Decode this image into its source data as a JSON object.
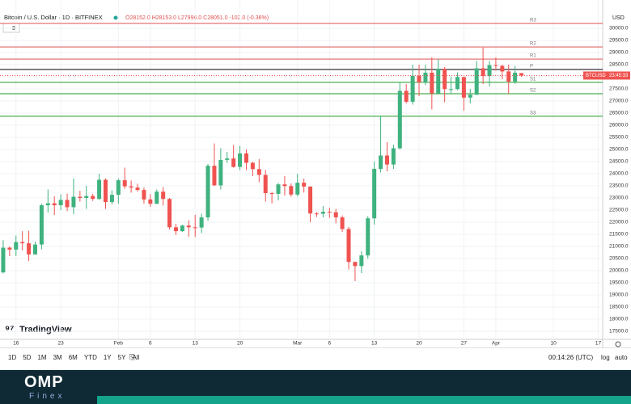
{
  "chart_data": {
    "type": "candlestick",
    "title": "Bitcoin / U.S. Dollar · 1D · BITFINEX",
    "legend": "O28152.0 H28153.0 L27996.0 C28051.0 -102.0 (-0.36%)",
    "indicator_count": "3",
    "y_axis_label": "USD",
    "x": [
      14,
      15,
      16,
      17,
      18,
      19,
      20,
      21,
      22,
      23,
      24,
      25,
      26,
      27,
      28,
      29,
      30,
      31,
      32,
      33,
      34,
      35,
      36,
      37,
      38,
      39,
      40,
      41,
      42,
      43,
      44,
      45,
      46,
      47,
      48,
      49,
      50,
      51,
      52,
      53,
      54,
      55,
      56,
      57,
      58,
      59,
      60,
      61,
      62,
      63,
      64,
      65,
      66,
      67,
      68,
      69,
      70,
      71,
      72,
      73,
      74,
      75,
      76,
      77,
      78,
      79,
      80,
      81,
      82,
      83,
      84,
      85,
      86,
      87,
      88,
      89,
      90,
      91,
      92,
      93,
      94,
      95
    ],
    "open": [
      19930,
      20950,
      20870,
      21180,
      21130,
      20670,
      21080,
      22700,
      22780,
      22700,
      22920,
      22620,
      23050,
      23000,
      23080,
      22960,
      23750,
      22830,
      23130,
      23730,
      23480,
      23430,
      23330,
      22940,
      22760,
      23260,
      22960,
      21790,
      21630,
      21860,
      21790,
      21780,
      22200,
      24330,
      23520,
      24570,
      24630,
      24280,
      24840,
      24450,
      24190,
      23950,
      23200,
      23170,
      23560,
      23490,
      23140,
      23630,
      23470,
      22360,
      22350,
      22430,
      22410,
      22200,
      21720,
      20360,
      20190,
      20630,
      22160,
      24200,
      24750,
      24380,
      25050,
      27420,
      26970,
      28040,
      27770,
      28170,
      27310,
      28330,
      27490,
      27490,
      27990,
      27140,
      27260,
      28350,
      28030,
      28480,
      28450,
      28220,
      27800,
      28152
    ],
    "high": [
      21260,
      21000,
      21450,
      21630,
      21650,
      21200,
      22760,
      23350,
      23070,
      23150,
      23180,
      23800,
      23300,
      23500,
      23170,
      24000,
      23800,
      23320,
      23800,
      24250,
      23720,
      23590,
      23430,
      23160,
      23350,
      23450,
      23000,
      21930,
      21900,
      22080,
      22300,
      22350,
      24400,
      25250,
      25050,
      24900,
      25180,
      25150,
      25000,
      24500,
      24600,
      24150,
      23250,
      23620,
      23900,
      23600,
      24000,
      23800,
      23480,
      22420,
      22670,
      22600,
      22550,
      22280,
      21800,
      20380,
      20800,
      22250,
      24500,
      26400,
      25300,
      25200,
      27750,
      27700,
      28500,
      28500,
      28500,
      28800,
      28730,
      28400,
      28000,
      28180,
      28000,
      27500,
      28650,
      29200,
      28650,
      28800,
      28500,
      28500,
      28450,
      28153
    ],
    "low": [
      19890,
      20600,
      20600,
      20840,
      20400,
      20660,
      20880,
      22400,
      22300,
      22500,
      22460,
      22330,
      22850,
      22550,
      22880,
      22920,
      22550,
      22730,
      22760,
      23380,
      23220,
      23260,
      22770,
      22630,
      22750,
      22690,
      21700,
      21470,
      21600,
      21400,
      21390,
      21550,
      22060,
      23500,
      23350,
      24450,
      24250,
      24150,
      24150,
      23900,
      23650,
      22850,
      22780,
      22900,
      23100,
      23050,
      23060,
      23220,
      22000,
      22220,
      22200,
      22180,
      21950,
      21600,
      20050,
      19570,
      19900,
      20500,
      21900,
      24050,
      24100,
      24200,
      25000,
      26900,
      26850,
      27200,
      27650,
      26650,
      27300,
      26950,
      27300,
      27450,
      26600,
      26900,
      27250,
      27700,
      27600,
      28250,
      27900,
      27300,
      27700,
      27996
    ],
    "close": [
      20950,
      20870,
      21180,
      21130,
      20670,
      21080,
      22700,
      22780,
      22700,
      22920,
      22620,
      23050,
      23000,
      23080,
      22960,
      23750,
      22830,
      23130,
      23730,
      23480,
      23430,
      23330,
      22940,
      22760,
      23260,
      22960,
      21790,
      21630,
      21860,
      21790,
      21780,
      22200,
      24330,
      23520,
      24570,
      24630,
      24280,
      24840,
      24450,
      24190,
      23950,
      23200,
      23170,
      23560,
      23490,
      23140,
      23630,
      23470,
      22360,
      22350,
      22430,
      22410,
      22200,
      21720,
      20360,
      20190,
      20630,
      22160,
      24200,
      24750,
      24380,
      25050,
      27420,
      26970,
      28040,
      27770,
      28170,
      27310,
      28330,
      27490,
      27490,
      27990,
      27140,
      27260,
      28350,
      28030,
      28480,
      28450,
      28220,
      27800,
      28170,
      28051
    ],
    "up_color": "#3fb27f",
    "down_color": "#ef5350",
    "xlim": [
      13.5,
      107.7
    ],
    "xticks": [
      {
        "value": 16,
        "label": "16"
      },
      {
        "value": 23,
        "label": "23"
      },
      {
        "value": 32,
        "label": "Feb"
      },
      {
        "value": 37,
        "label": "6"
      },
      {
        "value": 44,
        "label": "13"
      },
      {
        "value": 51,
        "label": "20"
      },
      {
        "value": 60,
        "label": "Mar"
      },
      {
        "value": 65,
        "label": "6"
      },
      {
        "value": 72,
        "label": "13"
      },
      {
        "value": 79,
        "label": "20"
      },
      {
        "value": 86,
        "label": "27"
      },
      {
        "value": 91,
        "label": "Apr"
      },
      {
        "value": 100,
        "label": "10"
      },
      {
        "value": 107,
        "label": "17"
      }
    ],
    "ylim": [
      17167,
      30667
    ],
    "yticks": [
      {
        "value": 17500,
        "label": "17500.0"
      },
      {
        "value": 18000,
        "label": "18000.0"
      },
      {
        "value": 18500,
        "label": "18500.0"
      },
      {
        "value": 19000,
        "label": "19000.0"
      },
      {
        "value": 19500,
        "label": "19500.0"
      },
      {
        "value": 20000,
        "label": "20000.0"
      },
      {
        "value": 20500,
        "label": "20500.0"
      },
      {
        "value": 21000,
        "label": "21000.0"
      },
      {
        "value": 21500,
        "label": "21500.0"
      },
      {
        "value": 22000,
        "label": "22000.0"
      },
      {
        "value": 22500,
        "label": "22500.0"
      },
      {
        "value": 23000,
        "label": "23000.0"
      },
      {
        "value": 23500,
        "label": "23500.0"
      },
      {
        "value": 24000,
        "label": "24000.0"
      },
      {
        "value": 24500,
        "label": "24500.0"
      },
      {
        "value": 25000,
        "label": "25000.0"
      },
      {
        "value": 25500,
        "label": "25500.0"
      },
      {
        "value": 26000,
        "label": "26000.0"
      },
      {
        "value": 26500,
        "label": "26500.0"
      },
      {
        "value": 27000,
        "label": "27000.0"
      },
      {
        "value": 27500,
        "label": "27500.0"
      },
      {
        "value": 28000,
        "label": "28000.0"
      },
      {
        "value": 28500,
        "label": "28500.0"
      },
      {
        "value": 29000,
        "label": "29000.0"
      },
      {
        "value": 29500,
        "label": "29500.0"
      },
      {
        "value": 30000,
        "label": "30000.0"
      }
    ],
    "grid": true,
    "levels": [
      {
        "name": "R3",
        "value": 30200,
        "color": "#e57373"
      },
      {
        "name": "R2",
        "value": 29230,
        "color": "#e57373"
      },
      {
        "name": "R1",
        "value": 28730,
        "color": "#e57373"
      },
      {
        "name": "P",
        "value": 28300,
        "color": "#333333"
      },
      {
        "name": "S1",
        "value": 27770,
        "color": "#4caf50"
      },
      {
        "name": "S2",
        "value": 27300,
        "color": "#4caf50"
      },
      {
        "name": "S3",
        "value": 26370,
        "color": "#4caf50"
      }
    ],
    "price_label": "BTCUSD",
    "countdown": "23:45:33"
  },
  "toolbar": {
    "timeframes": [
      "1D",
      "5D",
      "1M",
      "3M",
      "6M",
      "YTD",
      "1Y",
      "5Y",
      "All"
    ],
    "clock": "00:14:26 (UTC)",
    "log": "log",
    "auto": "auto"
  },
  "logo": "TradingView",
  "brand": {
    "name": "OMP",
    "sub": "Finex"
  }
}
